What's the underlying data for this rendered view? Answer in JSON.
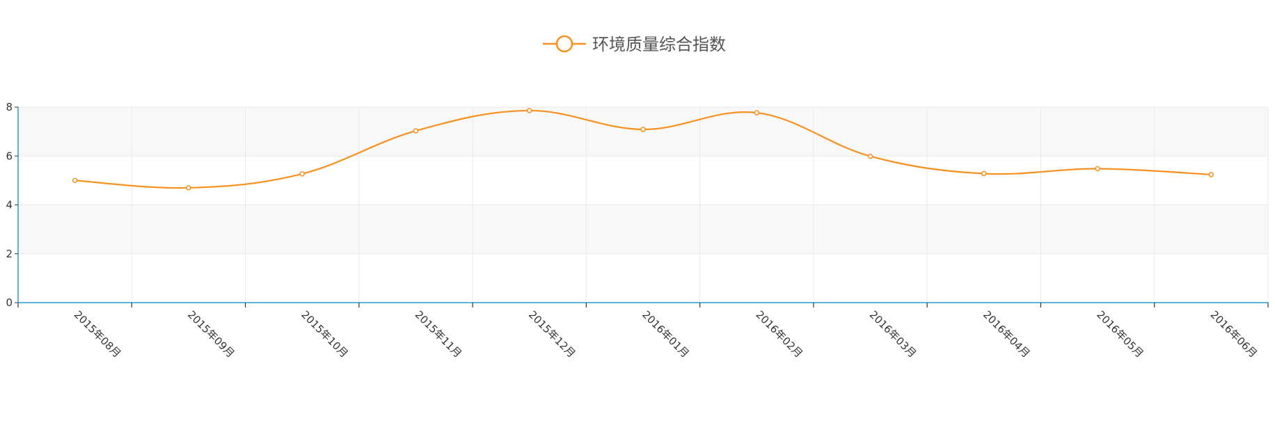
{
  "chart_data": {
    "type": "line",
    "title": "",
    "xlabel": "",
    "ylabel": "",
    "categories": [
      "2015年08月",
      "2015年09月",
      "2015年10月",
      "2015年11月",
      "2015年12月",
      "2016年01月",
      "2016年02月",
      "2016年03月",
      "2016年04月",
      "2016年05月",
      "2016年06月"
    ],
    "series": [
      {
        "name": "环境质量综合指数",
        "values": [
          5.0,
          4.7,
          5.27,
          7.03,
          7.86,
          7.09,
          7.77,
          5.99,
          5.28,
          5.48,
          5.24
        ]
      }
    ],
    "ylim": [
      0,
      8
    ],
    "yticks": [
      0,
      2,
      4,
      6,
      8
    ],
    "smooth": true,
    "grid": true,
    "legend_position": "top-center",
    "colors": {
      "series": "#f7901e",
      "axis": "#5bb5d5",
      "band": "#f8f8f8",
      "grid": "#e9e9e9",
      "tick_text": "#333333",
      "legend_text": "#555555"
    }
  }
}
